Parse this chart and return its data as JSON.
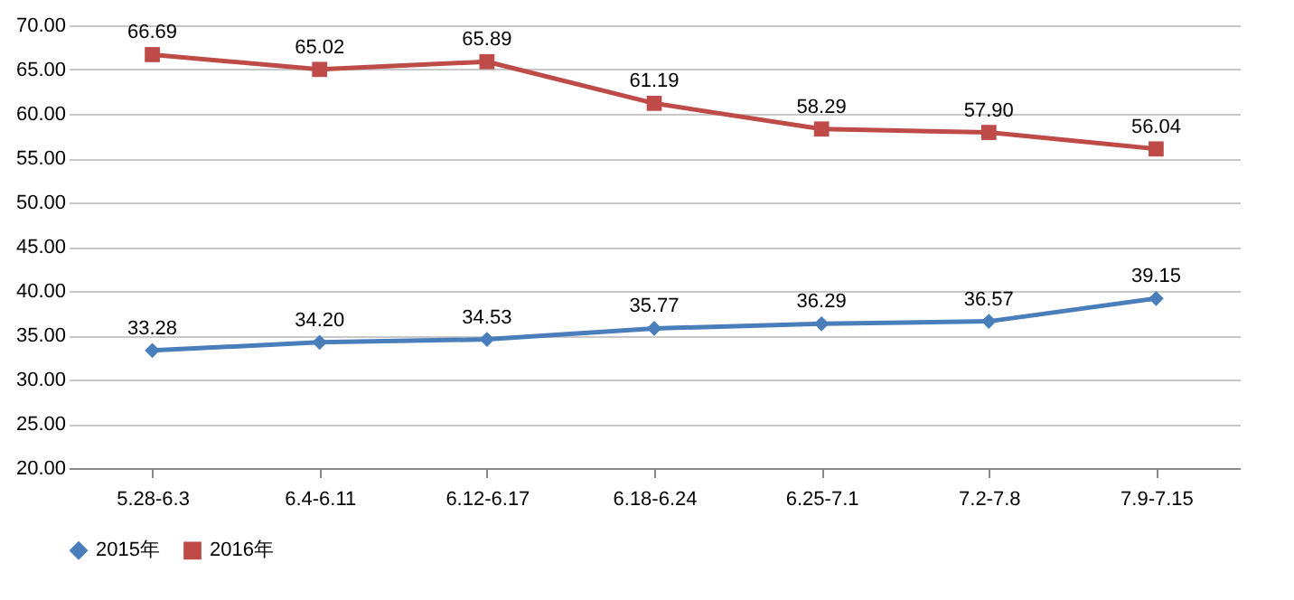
{
  "chart_data": {
    "type": "line",
    "categories": [
      "5.28-6.3",
      "6.4-6.11",
      "6.12-6.17",
      "6.18-6.24",
      "6.25-7.1",
      "7.2-7.8",
      "7.9-7.15"
    ],
    "series": [
      {
        "name": "2015年",
        "color": "#4a7ebb",
        "marker": "diamond",
        "values": [
          33.28,
          34.2,
          34.53,
          35.77,
          36.29,
          36.57,
          39.15
        ],
        "value_labels": [
          "33.28",
          "34.20",
          "34.53",
          "35.77",
          "36.29",
          "36.57",
          "39.15"
        ]
      },
      {
        "name": "2016年",
        "color": "#be4b48",
        "marker": "square",
        "values": [
          66.69,
          65.02,
          65.89,
          61.19,
          58.29,
          57.9,
          56.04
        ],
        "value_labels": [
          "66.69",
          "65.02",
          "65.89",
          "61.19",
          "58.29",
          "57.90",
          "56.04"
        ]
      }
    ],
    "ylim": [
      20,
      70
    ],
    "yticks": [
      {
        "value": 20,
        "label": "20.00"
      },
      {
        "value": 25,
        "label": "25.00"
      },
      {
        "value": 30,
        "label": "30.00"
      },
      {
        "value": 35,
        "label": "35.00"
      },
      {
        "value": 40,
        "label": "40.00"
      },
      {
        "value": 45,
        "label": "45.00"
      },
      {
        "value": 50,
        "label": "50.00"
      },
      {
        "value": 55,
        "label": "55.00"
      },
      {
        "value": 60,
        "label": "60.00"
      },
      {
        "value": 65,
        "label": "65.00"
      },
      {
        "value": 70,
        "label": "70.00"
      }
    ],
    "grid": "y",
    "legend": "bottom",
    "line_style": "solid"
  }
}
